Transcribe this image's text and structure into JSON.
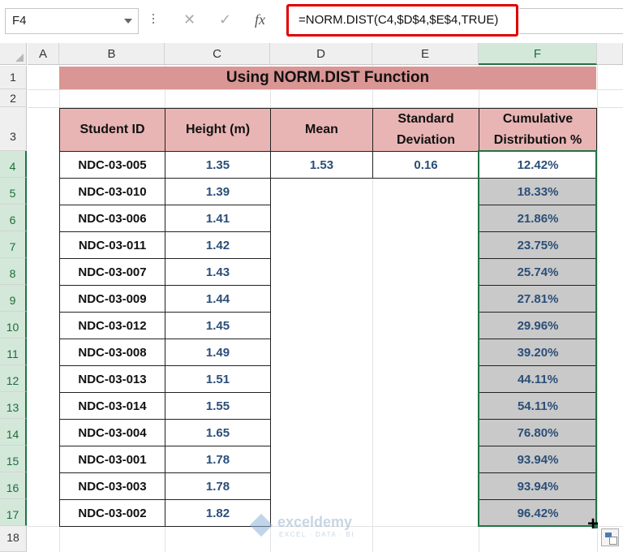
{
  "formula_bar": {
    "name_box": "F4",
    "cancel_icon": "✕",
    "enter_icon": "✓",
    "fx_icon": "fx",
    "formula": "=NORM.DIST(C4,$D$4,$E$4,TRUE)"
  },
  "columns": [
    "A",
    "B",
    "C",
    "D",
    "E",
    "F"
  ],
  "selected_column": "F",
  "rows": [
    "1",
    "2",
    "3",
    "4",
    "5",
    "6",
    "7",
    "8",
    "9",
    "10",
    "11",
    "12",
    "13",
    "14",
    "15",
    "16",
    "17",
    "18"
  ],
  "title": "Using NORM.DIST Function",
  "table": {
    "headers": {
      "student_id": "Student ID",
      "height": "Height (m)",
      "mean": "Mean",
      "std_line1": "Standard",
      "std_line2": "Deviation",
      "cdf_line1": "Cumulative",
      "cdf_line2": "Distribution %"
    },
    "mean_value": "1.53",
    "std_value": "0.16",
    "records": [
      {
        "id": "NDC-03-005",
        "height": "1.35",
        "cdf": "12.42%"
      },
      {
        "id": "NDC-03-010",
        "height": "1.39",
        "cdf": "18.33%"
      },
      {
        "id": "NDC-03-006",
        "height": "1.41",
        "cdf": "21.86%"
      },
      {
        "id": "NDC-03-011",
        "height": "1.42",
        "cdf": "23.75%"
      },
      {
        "id": "NDC-03-007",
        "height": "1.43",
        "cdf": "25.74%"
      },
      {
        "id": "NDC-03-009",
        "height": "1.44",
        "cdf": "27.81%"
      },
      {
        "id": "NDC-03-012",
        "height": "1.45",
        "cdf": "29.96%"
      },
      {
        "id": "NDC-03-008",
        "height": "1.49",
        "cdf": "39.20%"
      },
      {
        "id": "NDC-03-013",
        "height": "1.51",
        "cdf": "44.11%"
      },
      {
        "id": "NDC-03-014",
        "height": "1.55",
        "cdf": "54.11%"
      },
      {
        "id": "NDC-03-004",
        "height": "1.65",
        "cdf": "76.80%"
      },
      {
        "id": "NDC-03-001",
        "height": "1.78",
        "cdf": "93.94%"
      },
      {
        "id": "NDC-03-003",
        "height": "1.78",
        "cdf": "93.94%"
      },
      {
        "id": "NDC-03-002",
        "height": "1.82",
        "cdf": "96.42%"
      }
    ]
  },
  "watermark": {
    "name": "exceldemy",
    "tagline": "EXCEL · DATA · BI"
  },
  "colors": {
    "title_fill": "#d99694",
    "header_fill": "#e8b5b4",
    "selection": "#217346",
    "value_text": "#2b4e78"
  }
}
